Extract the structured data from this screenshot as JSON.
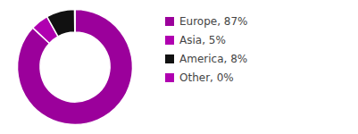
{
  "chart_data": {
    "type": "pie",
    "categories": [
      "Europe, 87%",
      "Asia, 5%",
      "America, 8%",
      "Other, 0%"
    ],
    "values": [
      87,
      5,
      8,
      0.1
    ],
    "colors": [
      "#9b009b",
      "#b000b0",
      "#111111",
      "#b000b0"
    ],
    "legend": "right"
  }
}
